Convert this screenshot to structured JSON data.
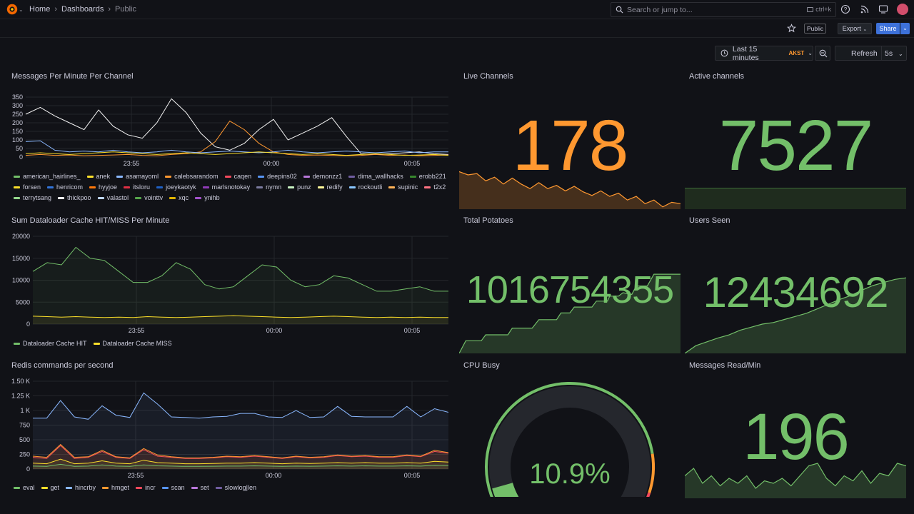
{
  "nav": {
    "breadcrumbs": [
      "Home",
      "Dashboards",
      "Public"
    ],
    "search_placeholder": "Search or jump to...",
    "search_shortcut": "ctrl+k"
  },
  "toolbar": {
    "public_label": "Public",
    "export_label": "Export",
    "share_label": "Share",
    "time_range": "Last 15 minutes",
    "timezone": "AKST",
    "refresh_label": "Refresh",
    "refresh_interval": "5s"
  },
  "colors": {
    "orange": "#ff9830",
    "green": "#73bf69",
    "yellow": "#fade2a",
    "red": "#f2495c",
    "blue": "#5794f2",
    "purple": "#b877d9"
  },
  "panels": {
    "messages": {
      "title": "Messages Per Minute Per Channel",
      "legend": [
        {
          "name": "american_hairlines_",
          "color": "#73bf69"
        },
        {
          "name": "anek",
          "color": "#fade2a"
        },
        {
          "name": "asamayoml",
          "color": "#8ab8ff"
        },
        {
          "name": "calebsarandom",
          "color": "#ff9830"
        },
        {
          "name": "caqen",
          "color": "#f2495c"
        },
        {
          "name": "deepins02",
          "color": "#5794f2"
        },
        {
          "name": "demonzz1",
          "color": "#b877d9"
        },
        {
          "name": "dima_wallhacks",
          "color": "#705da0"
        },
        {
          "name": "erobb221",
          "color": "#37872d"
        },
        {
          "name": "forsen",
          "color": "#fade2a"
        },
        {
          "name": "henricom",
          "color": "#3274d9"
        },
        {
          "name": "hyyjoe",
          "color": "#ff780a"
        },
        {
          "name": "itsloru",
          "color": "#e02f44"
        },
        {
          "name": "joeykaotyk",
          "color": "#1f60c4"
        },
        {
          "name": "marlsnotokay",
          "color": "#8f3bb8"
        },
        {
          "name": "nymn",
          "color": "#7a7a9e"
        },
        {
          "name": "punz",
          "color": "#c8f2c2"
        },
        {
          "name": "redify",
          "color": "#fff899"
        },
        {
          "name": "rockoutli",
          "color": "#8ac6ff"
        },
        {
          "name": "supinic",
          "color": "#ffb357"
        },
        {
          "name": "t2x2",
          "color": "#ff7383"
        },
        {
          "name": "terrytsang",
          "color": "#96d98d"
        },
        {
          "name": "thickpoo",
          "color": "#f4f4f4"
        },
        {
          "name": "valastol",
          "color": "#c0d8ff"
        },
        {
          "name": "vointtv",
          "color": "#56a64b"
        },
        {
          "name": "xqc",
          "color": "#e0b400"
        },
        {
          "name": "ynihb",
          "color": "#a352cc"
        }
      ]
    },
    "live": {
      "title": "Live Channels",
      "value": "178",
      "color": "#ff9830"
    },
    "active": {
      "title": "Active channels",
      "value": "7527",
      "color": "#73bf69"
    },
    "cache": {
      "title": "Sum Dataloader Cache HIT/MISS Per Minute",
      "legend": [
        {
          "name": "Dataloader Cache HIT",
          "color": "#73bf69"
        },
        {
          "name": "Dataloader Cache MISS",
          "color": "#fade2a"
        }
      ]
    },
    "potatoes": {
      "title": "Total Potatoes",
      "value": "1016754355",
      "color": "#73bf69"
    },
    "users": {
      "title": "Users Seen",
      "value": "12434692",
      "color": "#73bf69"
    },
    "redis": {
      "title": "Redis commands per second",
      "legend": [
        {
          "name": "eval",
          "color": "#73bf69"
        },
        {
          "name": "get",
          "color": "#fade2a"
        },
        {
          "name": "hincrby",
          "color": "#8ab8ff"
        },
        {
          "name": "hmget",
          "color": "#ff9830"
        },
        {
          "name": "incr",
          "color": "#f2495c"
        },
        {
          "name": "scan",
          "color": "#5794f2"
        },
        {
          "name": "set",
          "color": "#b877d9"
        },
        {
          "name": "slowlog|len",
          "color": "#705da0"
        }
      ]
    },
    "cpu": {
      "title": "CPU Busy",
      "value_text": "10.9%",
      "value": 10.9,
      "color": "#73bf69"
    },
    "readmin": {
      "title": "Messages Read/Min",
      "value": "196",
      "color": "#73bf69"
    }
  },
  "chart_data": [
    {
      "type": "line",
      "panel": "Messages Per Minute Per Channel",
      "ylim": [
        0,
        350
      ],
      "yticks": [
        "350",
        "300",
        "250",
        "200",
        "150",
        "100",
        "50",
        "0"
      ],
      "xticks": [
        "23:55",
        "00:00",
        "00:05"
      ],
      "series": [
        {
          "name": "thickpoo",
          "values": [
            250,
            290,
            240,
            200,
            160,
            275,
            180,
            130,
            110,
            200,
            340,
            260,
            140,
            60,
            40,
            80,
            160,
            220,
            100,
            140,
            180,
            230,
            120,
            20,
            15,
            20,
            25,
            30,
            20,
            15
          ]
        },
        {
          "name": "calebsarandom",
          "values": [
            10,
            15,
            10,
            12,
            8,
            10,
            12,
            15,
            10,
            8,
            15,
            20,
            30,
            90,
            210,
            160,
            80,
            30,
            15,
            10,
            12,
            10,
            8,
            10,
            15,
            10,
            12,
            8,
            10,
            12
          ]
        },
        {
          "name": "asamayoml",
          "values": [
            90,
            95,
            40,
            30,
            35,
            30,
            40,
            30,
            25,
            30,
            40,
            30,
            25,
            30,
            35,
            30,
            25,
            30,
            40,
            30,
            25,
            30,
            35,
            30,
            25,
            30,
            35,
            25,
            30,
            30
          ]
        },
        {
          "name": "anek",
          "values": [
            20,
            25,
            20,
            15,
            20,
            25,
            30,
            25,
            20,
            15,
            20,
            25,
            20,
            15,
            20,
            25,
            30,
            25,
            20,
            15,
            20,
            15,
            10,
            15,
            20,
            15,
            10,
            12,
            15,
            10
          ]
        }
      ]
    },
    {
      "type": "line",
      "panel": "Sum Dataloader Cache HIT/MISS Per Minute",
      "ylim": [
        0,
        20000
      ],
      "yticks": [
        "20000",
        "15000",
        "10000",
        "5000",
        "0"
      ],
      "xticks": [
        "23:55",
        "00:00",
        "00:05"
      ],
      "series": [
        {
          "name": "Dataloader Cache HIT",
          "values": [
            12000,
            14000,
            13500,
            17500,
            15000,
            14500,
            12000,
            9500,
            9500,
            11000,
            14000,
            12500,
            9000,
            8000,
            8500,
            11000,
            13500,
            13000,
            10000,
            8500,
            9000,
            11000,
            10500,
            9000,
            7500,
            7500,
            8000,
            8500,
            7500,
            7500
          ]
        },
        {
          "name": "Dataloader Cache MISS",
          "values": [
            1800,
            1700,
            1600,
            1700,
            1600,
            1500,
            1600,
            1500,
            1700,
            1600,
            1500,
            1600,
            1700,
            1800,
            1900,
            1800,
            1700,
            1600,
            1500,
            1600,
            1700,
            1800,
            1700,
            1600,
            1500,
            1600,
            1500,
            1600,
            1500,
            1500
          ]
        }
      ]
    },
    {
      "type": "line",
      "panel": "Redis commands per second",
      "ylim": [
        0,
        1500
      ],
      "yticks": [
        "1.50 K",
        "1.25 K",
        "1 K",
        "750",
        "500",
        "250",
        "0"
      ],
      "xticks": [
        "23:55",
        "00:00",
        "00:05"
      ],
      "series": [
        {
          "name": "hincrby",
          "values": [
            870,
            870,
            1170,
            890,
            850,
            1080,
            920,
            880,
            1300,
            1110,
            890,
            880,
            870,
            890,
            900,
            950,
            950,
            890,
            880,
            1000,
            880,
            890,
            1070,
            900,
            890,
            890,
            890,
            1070,
            890,
            1030,
            970
          ]
        },
        {
          "name": "incr",
          "values": [
            200,
            180,
            400,
            180,
            200,
            300,
            200,
            180,
            330,
            220,
            200,
            180,
            180,
            190,
            210,
            200,
            220,
            200,
            180,
            210,
            190,
            200,
            230,
            210,
            220,
            200,
            200,
            230,
            210,
            300,
            270
          ]
        },
        {
          "name": "hmget",
          "values": [
            220,
            200,
            420,
            200,
            210,
            320,
            210,
            190,
            350,
            240,
            210,
            190,
            190,
            200,
            220,
            210,
            230,
            210,
            190,
            220,
            200,
            210,
            240,
            220,
            230,
            210,
            210,
            240,
            220,
            320,
            280
          ]
        },
        {
          "name": "get",
          "values": [
            100,
            90,
            170,
            90,
            100,
            140,
            100,
            90,
            150,
            110,
            100,
            90,
            90,
            95,
            100,
            100,
            110,
            100,
            90,
            100,
            95,
            100,
            110,
            100,
            110,
            100,
            100,
            110,
            100,
            130,
            120
          ]
        },
        {
          "name": "eval",
          "values": [
            50,
            45,
            80,
            45,
            50,
            70,
            50,
            45,
            70,
            55,
            50,
            45,
            45,
            48,
            50,
            50,
            55,
            50,
            45,
            50,
            48,
            50,
            55,
            50,
            55,
            50,
            50,
            55,
            50,
            65,
            60
          ]
        }
      ]
    }
  ]
}
